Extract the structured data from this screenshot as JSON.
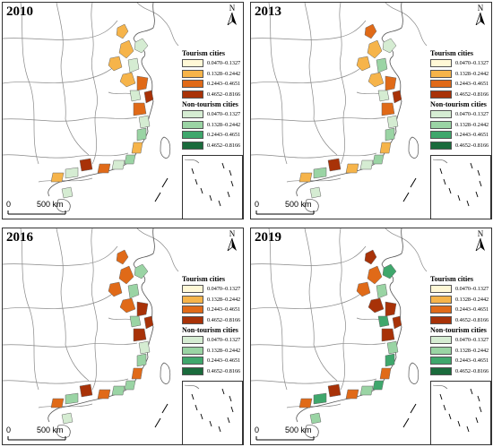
{
  "panels": [
    {
      "year": "2010"
    },
    {
      "year": "2013"
    },
    {
      "year": "2016"
    },
    {
      "year": "2019"
    }
  ],
  "legend": {
    "tourism_title": "Tourism cities",
    "non_tourism_title": "Non-tourism cities",
    "ranges": [
      "0.0470–0.1327",
      "0.1328–0.2442",
      "0.2443–0.4651",
      "0.4652–0.8166"
    ],
    "tourism_colors": [
      "#fff8d6",
      "#f6b44a",
      "#e06a18",
      "#a83208"
    ],
    "non_tourism_colors": [
      "#d5ecd2",
      "#9ad4a4",
      "#3fa76c",
      "#1a6b3c"
    ]
  },
  "scale": {
    "zero": "0",
    "label": "500 km"
  },
  "north_label": "N"
}
